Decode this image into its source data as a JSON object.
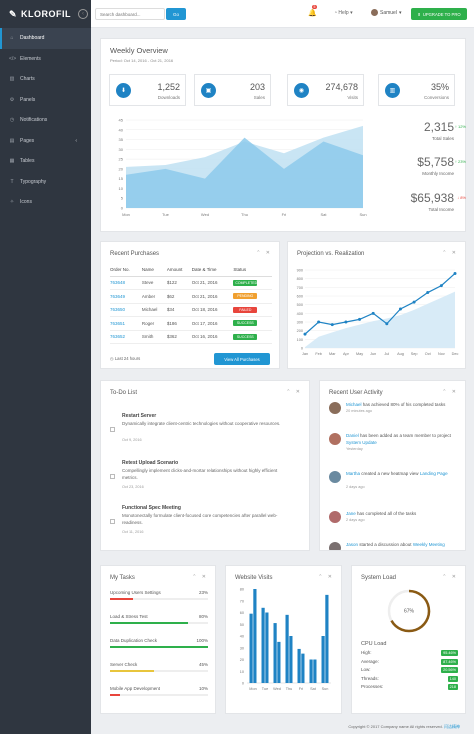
{
  "app": {
    "brand": "KLOROFIL"
  },
  "topbar": {
    "search_placeholder": "Search dashboard...",
    "go_label": "Go",
    "notif_count": "5",
    "help_label": "Help",
    "user_name": "Samuel",
    "upgrade_label": "UPGRADE TO PRO"
  },
  "sidebar": {
    "items": [
      {
        "label": "Dashboard",
        "icon": "home-icon"
      },
      {
        "label": "Elements",
        "icon": "code-icon"
      },
      {
        "label": "Charts",
        "icon": "chart-icon"
      },
      {
        "label": "Panels",
        "icon": "cog-icon"
      },
      {
        "label": "Notifications",
        "icon": "alarm-icon"
      },
      {
        "label": "Pages",
        "icon": "file-icon"
      },
      {
        "label": "Tables",
        "icon": "table-icon"
      },
      {
        "label": "Typography",
        "icon": "text-icon"
      },
      {
        "label": "Icons",
        "icon": "ribbon-icon"
      }
    ]
  },
  "overview": {
    "title": "Weekly Overview",
    "period": "Period: Oct 14, 2016 - Oct 21, 2016",
    "stats": [
      {
        "value": "1,252",
        "label": "Downloads"
      },
      {
        "value": "203",
        "label": "Sales"
      },
      {
        "value": "274,678",
        "label": "Visits"
      },
      {
        "value": "35%",
        "label": "Conversions"
      }
    ],
    "side": [
      {
        "value": "2,315",
        "label": "Total Sales",
        "change": "↑ 12%"
      },
      {
        "value": "$5,758",
        "label": "Monthly Income",
        "change": "↑ 23%"
      },
      {
        "value": "$65,938",
        "label": "Total Income",
        "change": "↓ 8%"
      }
    ]
  },
  "purchases": {
    "title": "Recent Purchases",
    "headers": [
      "Order No.",
      "Name",
      "Amount",
      "Date & Time",
      "Status"
    ],
    "rows": [
      [
        "763648",
        "Steve",
        "$122",
        "Oct 21, 2016",
        "COMPLETED"
      ],
      [
        "763649",
        "Amber",
        "$62",
        "Oct 21, 2016",
        "PENDING"
      ],
      [
        "763650",
        "Michael",
        "$34",
        "Oct 18, 2016",
        "FAILED"
      ],
      [
        "763651",
        "Roger",
        "$186",
        "Oct 17, 2016",
        "SUCCESS"
      ],
      [
        "763652",
        "Smith",
        "$362",
        "Oct 16, 2016",
        "SUCCESS"
      ]
    ],
    "footer_note": "Last 24 hours",
    "view_all": "View All Purchases"
  },
  "projection": {
    "title": "Projection vs. Realization"
  },
  "todo": {
    "title": "To-Do List",
    "items": [
      {
        "title": "Restart Server",
        "desc": "Dynamically integrate client-centric technologies without cooperative resources.",
        "date": "Oct 9, 2016"
      },
      {
        "title": "Retest Upload Scenario",
        "desc": "Compellingly implement clicks-and-mortar relationships without highly efficient metrics.",
        "date": "Oct 23, 2016"
      },
      {
        "title": "Functional Spec Meeting",
        "desc": "Monotonectally formulate client-focused core competencies after parallel web-readiness.",
        "date": "Oct 11, 2016"
      }
    ]
  },
  "activity": {
    "title": "Recent User Activity",
    "items": [
      {
        "pre": "",
        "name": "Michael",
        "mid": " has achieved 80% of his completed tasks",
        "link": "",
        "time": "20 minutes ago"
      },
      {
        "pre": "",
        "name": "Daniel",
        "mid": " has been added as a team member to project ",
        "link": "System Update",
        "time": "Yesterday"
      },
      {
        "pre": "",
        "name": "Martha",
        "mid": " created a new heatmap view ",
        "link": "Landing Page",
        "time": "2 days ago"
      },
      {
        "pre": "",
        "name": "Jane",
        "mid": " has completed all of the tasks",
        "link": "",
        "time": "2 days ago"
      },
      {
        "pre": "",
        "name": "Jason",
        "mid": " started a discussion about ",
        "link": "Weekly Meeting",
        "time": ""
      }
    ]
  },
  "tasks": {
    "title": "My Tasks",
    "items": [
      {
        "name": "Upcoming Users Settings",
        "pct": "23%",
        "value": 23,
        "color": "#e8453c"
      },
      {
        "name": "Load & Stress Test",
        "pct": "80%",
        "value": 80,
        "color": "#2eb04b"
      },
      {
        "name": "Data Duplication Check",
        "pct": "100%",
        "value": 100,
        "color": "#2eb04b"
      },
      {
        "name": "Server Check",
        "pct": "45%",
        "value": 45,
        "color": "#e8c53c"
      },
      {
        "name": "Mobile App Development",
        "pct": "10%",
        "value": 10,
        "color": "#e8453c"
      }
    ]
  },
  "visits": {
    "title": "Website Visits"
  },
  "sysload": {
    "title": "System Load",
    "gauge": "67%",
    "gauge_value": 67,
    "cpu_title": "CPU Load",
    "rows": [
      {
        "label": "High:",
        "value": "95.46%"
      },
      {
        "label": "Average:",
        "value": "87.46%"
      },
      {
        "label": "Low:",
        "value": "20.56%"
      },
      {
        "label": "Threads:",
        "value": "140"
      },
      {
        "label": "Processes:",
        "value": "218"
      }
    ]
  },
  "footer": {
    "text": "Copyright © 2017 Company name All rights reserved. ",
    "link": "闪洁精神"
  },
  "chart_data": [
    {
      "type": "area",
      "x": [
        "Mon",
        "Tue",
        "Wed",
        "Thu",
        "Fri",
        "Sat",
        "Sun"
      ],
      "ylim": [
        0,
        45
      ],
      "yticks": [
        0,
        5,
        10,
        15,
        20,
        25,
        30,
        35,
        40,
        45
      ],
      "series": [
        {
          "values": [
            21,
            22,
            26,
            34,
            28,
            36,
            42
          ]
        },
        {
          "values": [
            17,
            20,
            15,
            36,
            20,
            34,
            27
          ]
        }
      ]
    },
    {
      "type": "line",
      "x": [
        "Jan",
        "Feb",
        "Mar",
        "Apr",
        "May",
        "Jun",
        "Jul",
        "Aug",
        "Sep",
        "Oct",
        "Nov",
        "Dec"
      ],
      "ylim": [
        0,
        900
      ],
      "yticks": [
        0,
        100,
        200,
        300,
        400,
        500,
        600,
        700,
        800,
        900
      ],
      "series": [
        {
          "values": [
            160,
            300,
            270,
            300,
            330,
            400,
            280,
            450,
            530,
            640,
            720,
            860
          ]
        },
        {
          "values": [
            10,
            130,
            180,
            230,
            270,
            310,
            340,
            380,
            440,
            510,
            580,
            650
          ]
        }
      ]
    },
    {
      "type": "bar",
      "categories": [
        "Mon",
        "Tue",
        "Wed",
        "Thu",
        "Fri",
        "Sat",
        "Sun"
      ],
      "ylim": [
        0,
        80
      ],
      "yticks": [
        0,
        10,
        20,
        30,
        40,
        50,
        60,
        70,
        80
      ],
      "series": [
        {
          "values": [
            59,
            64,
            51,
            58,
            29,
            20,
            40
          ]
        },
        {
          "values": [
            80,
            60,
            35,
            40,
            25,
            20,
            75
          ]
        }
      ]
    }
  ]
}
